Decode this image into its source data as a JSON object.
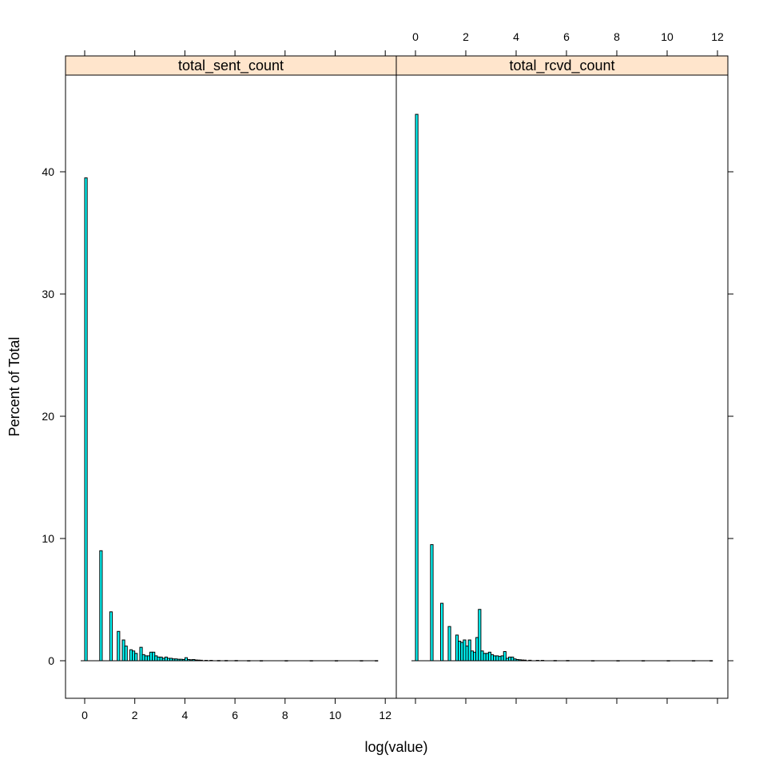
{
  "chart_data": {
    "type": "bar",
    "xlabel": "log(value)",
    "ylabel": "Percent of Total",
    "xlim": [
      0,
      12
    ],
    "ylim": [
      0,
      45
    ],
    "x_ticks": [
      0,
      2,
      4,
      6,
      8,
      10,
      12
    ],
    "y_ticks": [
      0,
      10,
      20,
      30,
      40
    ],
    "x_tick_labels": [
      "0",
      "2",
      "4",
      "6",
      "8",
      "10",
      "12"
    ],
    "y_tick_labels": [
      "0",
      "10",
      "20",
      "30",
      "40"
    ],
    "bin_width": 0.1,
    "colors": {
      "bar_fill": "#00ffff",
      "bar_stroke": "#000000",
      "strip_bg": "#ffe5cc"
    },
    "panels": [
      {
        "name": "total_sent_count",
        "bins": [
          [
            0.0,
            39.5
          ],
          [
            0.6,
            9.0
          ],
          [
            1.0,
            4.0
          ],
          [
            1.3,
            2.4
          ],
          [
            1.5,
            1.7
          ],
          [
            1.6,
            1.2
          ],
          [
            1.8,
            0.9
          ],
          [
            1.9,
            0.8
          ],
          [
            2.0,
            0.6
          ],
          [
            2.2,
            1.1
          ],
          [
            2.3,
            0.5
          ],
          [
            2.4,
            0.4
          ],
          [
            2.5,
            0.4
          ],
          [
            2.6,
            0.7
          ],
          [
            2.7,
            0.7
          ],
          [
            2.8,
            0.4
          ],
          [
            2.9,
            0.3
          ],
          [
            3.0,
            0.3
          ],
          [
            3.1,
            0.2
          ],
          [
            3.2,
            0.3
          ],
          [
            3.3,
            0.2
          ],
          [
            3.4,
            0.2
          ],
          [
            3.5,
            0.15
          ],
          [
            3.6,
            0.15
          ],
          [
            3.7,
            0.12
          ],
          [
            3.8,
            0.12
          ],
          [
            3.9,
            0.1
          ],
          [
            4.0,
            0.25
          ],
          [
            4.1,
            0.1
          ],
          [
            4.2,
            0.08
          ],
          [
            4.3,
            0.1
          ],
          [
            4.4,
            0.06
          ],
          [
            4.5,
            0.05
          ],
          [
            4.6,
            0.04
          ],
          [
            4.8,
            0.03
          ],
          [
            5.0,
            0.03
          ],
          [
            5.3,
            0.02
          ],
          [
            5.6,
            0.02
          ],
          [
            6.0,
            0.02
          ],
          [
            6.5,
            0.01
          ],
          [
            7.0,
            0.01
          ],
          [
            8.0,
            0.01
          ],
          [
            9.0,
            0.01
          ],
          [
            10.0,
            0.01
          ],
          [
            11.0,
            0.01
          ],
          [
            11.6,
            0.01
          ]
        ]
      },
      {
        "name": "total_rcvd_count",
        "bins": [
          [
            0.0,
            44.7
          ],
          [
            0.6,
            9.5
          ],
          [
            1.0,
            4.7
          ],
          [
            1.3,
            2.8
          ],
          [
            1.6,
            2.1
          ],
          [
            1.7,
            1.6
          ],
          [
            1.8,
            1.5
          ],
          [
            1.9,
            1.7
          ],
          [
            2.0,
            1.2
          ],
          [
            2.1,
            1.7
          ],
          [
            2.2,
            0.8
          ],
          [
            2.3,
            0.7
          ],
          [
            2.4,
            1.9
          ],
          [
            2.5,
            4.2
          ],
          [
            2.6,
            0.8
          ],
          [
            2.7,
            0.6
          ],
          [
            2.8,
            0.6
          ],
          [
            2.9,
            0.7
          ],
          [
            3.0,
            0.5
          ],
          [
            3.1,
            0.4
          ],
          [
            3.2,
            0.4
          ],
          [
            3.3,
            0.35
          ],
          [
            3.4,
            0.4
          ],
          [
            3.5,
            0.75
          ],
          [
            3.6,
            0.2
          ],
          [
            3.7,
            0.3
          ],
          [
            3.8,
            0.3
          ],
          [
            3.9,
            0.15
          ],
          [
            4.0,
            0.1
          ],
          [
            4.1,
            0.08
          ],
          [
            4.2,
            0.06
          ],
          [
            4.3,
            0.05
          ],
          [
            4.5,
            0.04
          ],
          [
            4.8,
            0.03
          ],
          [
            5.0,
            0.03
          ],
          [
            5.5,
            0.02
          ],
          [
            6.0,
            0.02
          ],
          [
            7.0,
            0.01
          ],
          [
            8.0,
            0.01
          ],
          [
            9.0,
            0.01
          ],
          [
            10.0,
            0.01
          ],
          [
            11.0,
            0.01
          ],
          [
            11.7,
            0.01
          ]
        ]
      }
    ]
  }
}
